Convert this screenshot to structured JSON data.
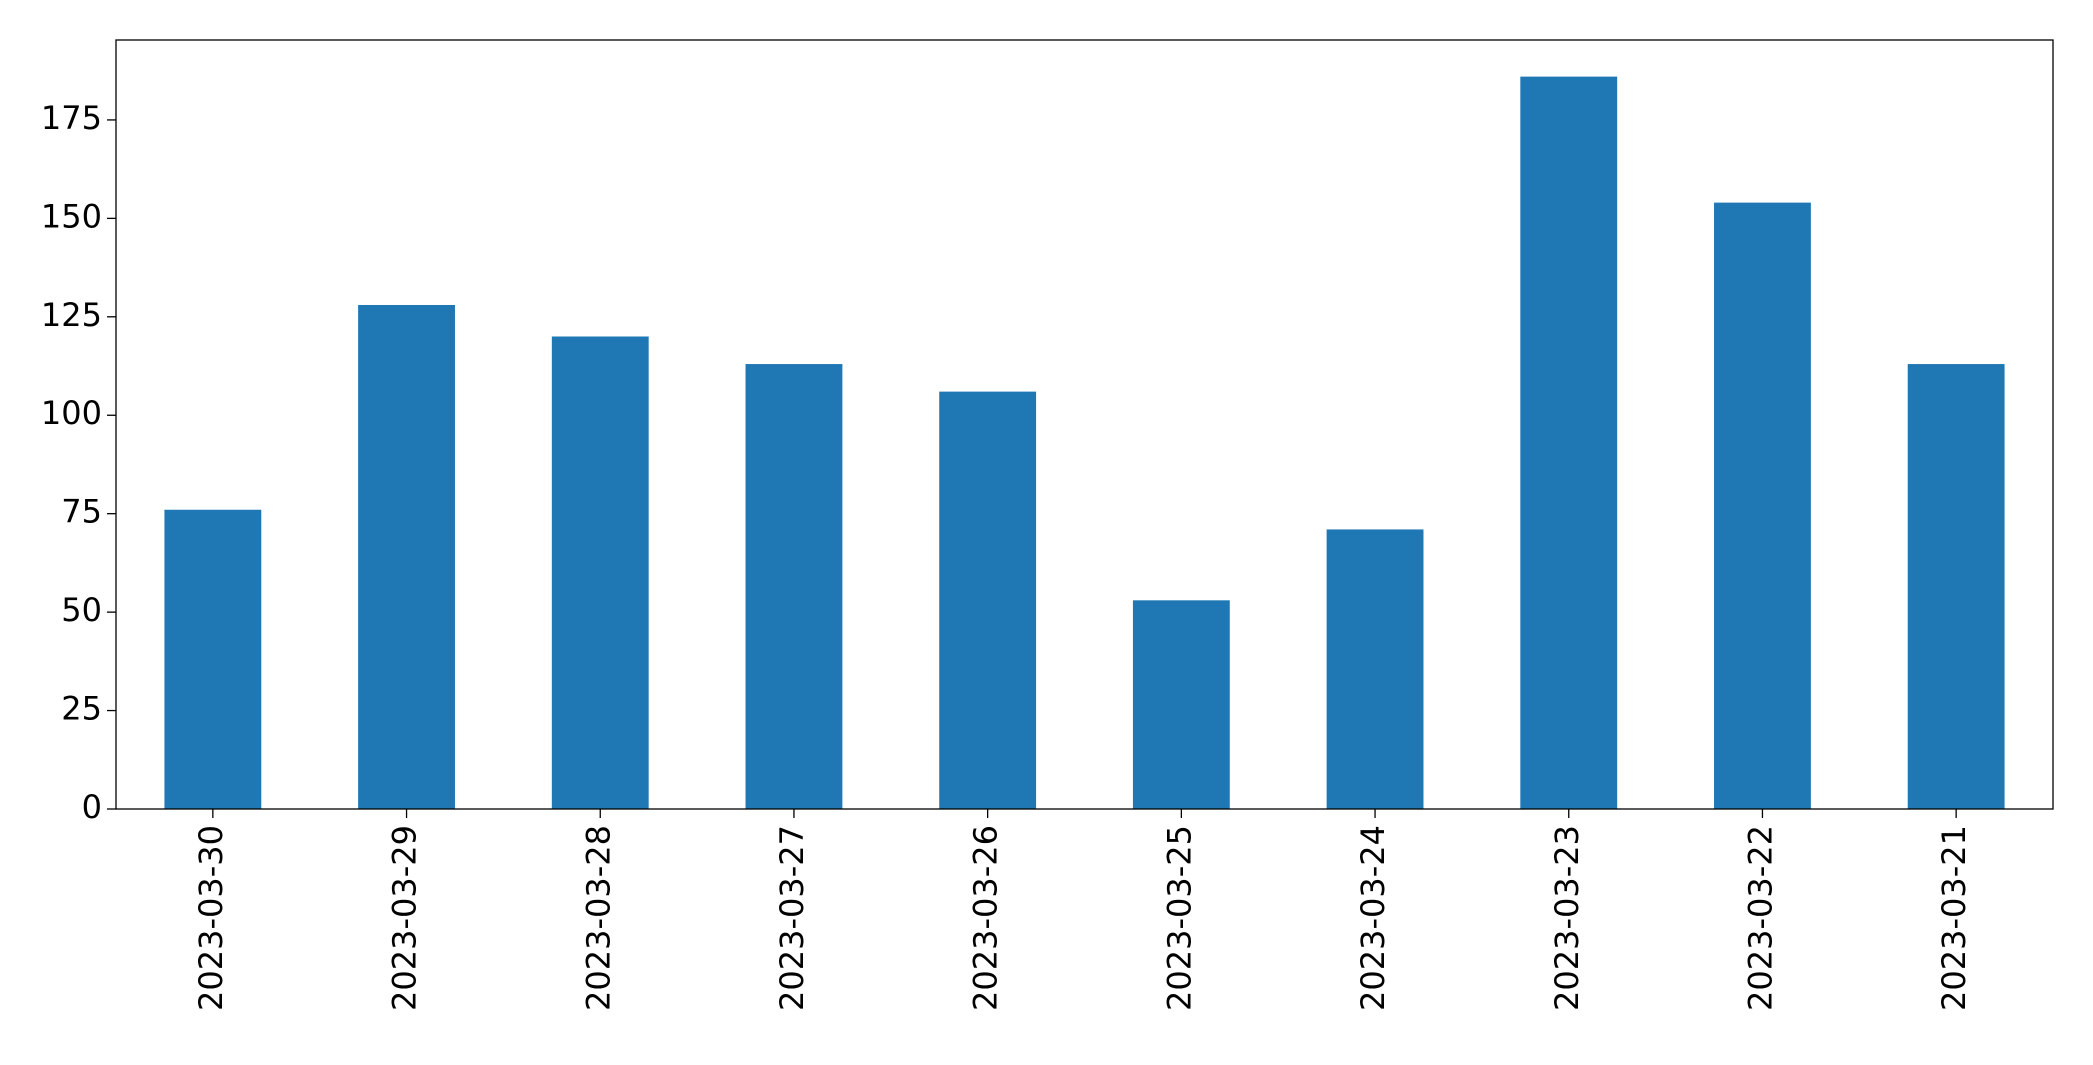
{
  "chart_data": {
    "type": "bar",
    "categories": [
      "2023-03-30",
      "2023-03-29",
      "2023-03-28",
      "2023-03-27",
      "2023-03-26",
      "2023-03-25",
      "2023-03-24",
      "2023-03-23",
      "2023-03-22",
      "2023-03-21"
    ],
    "values": [
      76,
      128,
      120,
      113,
      106,
      53,
      71,
      186,
      154,
      113
    ],
    "color": "#1f77b4",
    "ylim": [
      0,
      195.3
    ],
    "yticks": [
      0,
      25,
      50,
      75,
      100,
      125,
      150,
      175
    ],
    "grid": false
  }
}
